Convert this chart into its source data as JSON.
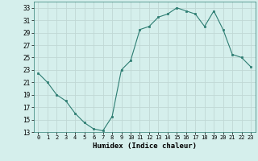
{
  "x": [
    0,
    1,
    2,
    3,
    4,
    5,
    6,
    7,
    8,
    9,
    10,
    11,
    12,
    13,
    14,
    15,
    16,
    17,
    18,
    19,
    20,
    21,
    22,
    23
  ],
  "y": [
    22.5,
    21.0,
    19.0,
    18.0,
    16.0,
    14.5,
    13.5,
    13.2,
    15.5,
    23.0,
    24.5,
    29.5,
    30.0,
    31.5,
    32.0,
    33.0,
    32.5,
    32.0,
    30.0,
    32.5,
    29.5,
    25.5,
    25.0,
    23.5
  ],
  "line_color": "#2d7d72",
  "marker": "s",
  "marker_size": 2.0,
  "bg_color": "#d5efec",
  "grid_color": "#c0d8d5",
  "xlabel": "Humidex (Indice chaleur)",
  "xlim": [
    -0.5,
    23.5
  ],
  "ylim": [
    13,
    34
  ],
  "yticks": [
    13,
    15,
    17,
    19,
    21,
    23,
    25,
    27,
    29,
    31,
    33
  ],
  "xtick_labels": [
    "0",
    "1",
    "2",
    "3",
    "4",
    "5",
    "6",
    "7",
    "8",
    "9",
    "10",
    "11",
    "12",
    "13",
    "14",
    "15",
    "16",
    "17",
    "18",
    "19",
    "20",
    "21",
    "22",
    "23"
  ]
}
